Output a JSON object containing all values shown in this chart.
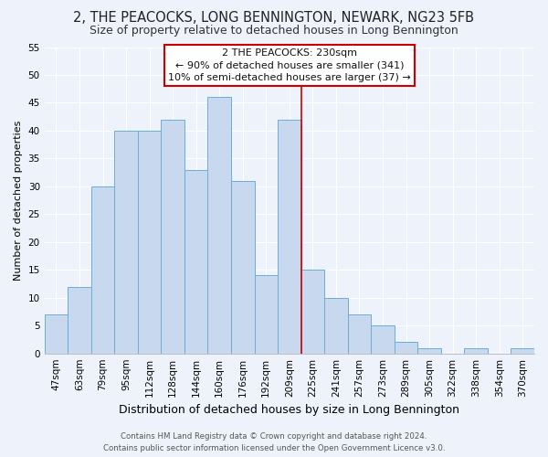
{
  "title": "2, THE PEACOCKS, LONG BENNINGTON, NEWARK, NG23 5FB",
  "subtitle": "Size of property relative to detached houses in Long Bennington",
  "xlabel": "Distribution of detached houses by size in Long Bennington",
  "ylabel": "Number of detached properties",
  "footer_line1": "Contains HM Land Registry data © Crown copyright and database right 2024.",
  "footer_line2": "Contains public sector information licensed under the Open Government Licence v3.0.",
  "bin_labels": [
    "47sqm",
    "63sqm",
    "79sqm",
    "95sqm",
    "112sqm",
    "128sqm",
    "144sqm",
    "160sqm",
    "176sqm",
    "192sqm",
    "209sqm",
    "225sqm",
    "241sqm",
    "257sqm",
    "273sqm",
    "289sqm",
    "305sqm",
    "322sqm",
    "338sqm",
    "354sqm",
    "370sqm"
  ],
  "bar_heights": [
    7,
    12,
    30,
    40,
    40,
    42,
    33,
    46,
    31,
    14,
    42,
    15,
    10,
    7,
    5,
    2,
    1,
    0,
    1,
    0,
    1
  ],
  "ylim": [
    0,
    55
  ],
  "yticks": [
    0,
    5,
    10,
    15,
    20,
    25,
    30,
    35,
    40,
    45,
    50,
    55
  ],
  "bar_color": "#c8d8ef",
  "bar_edge_color": "#6aaed6",
  "vline_x_idx": 11,
  "vline_color": "#cc0000",
  "annotation_text_line1": "2 THE PEACOCKS: 230sqm",
  "annotation_text_line2": "← 90% of detached houses are smaller (341)",
  "annotation_text_line3": "10% of semi-detached houses are larger (37) →",
  "bg_color": "#eef2fa",
  "grid_color": "#ffffff",
  "title_fontsize": 10.5,
  "subtitle_fontsize": 9,
  "ylabel_fontsize": 8,
  "xlabel_fontsize": 9,
  "tick_fontsize": 7.5,
  "footer_fontsize": 6.2,
  "ann_fontsize": 8
}
